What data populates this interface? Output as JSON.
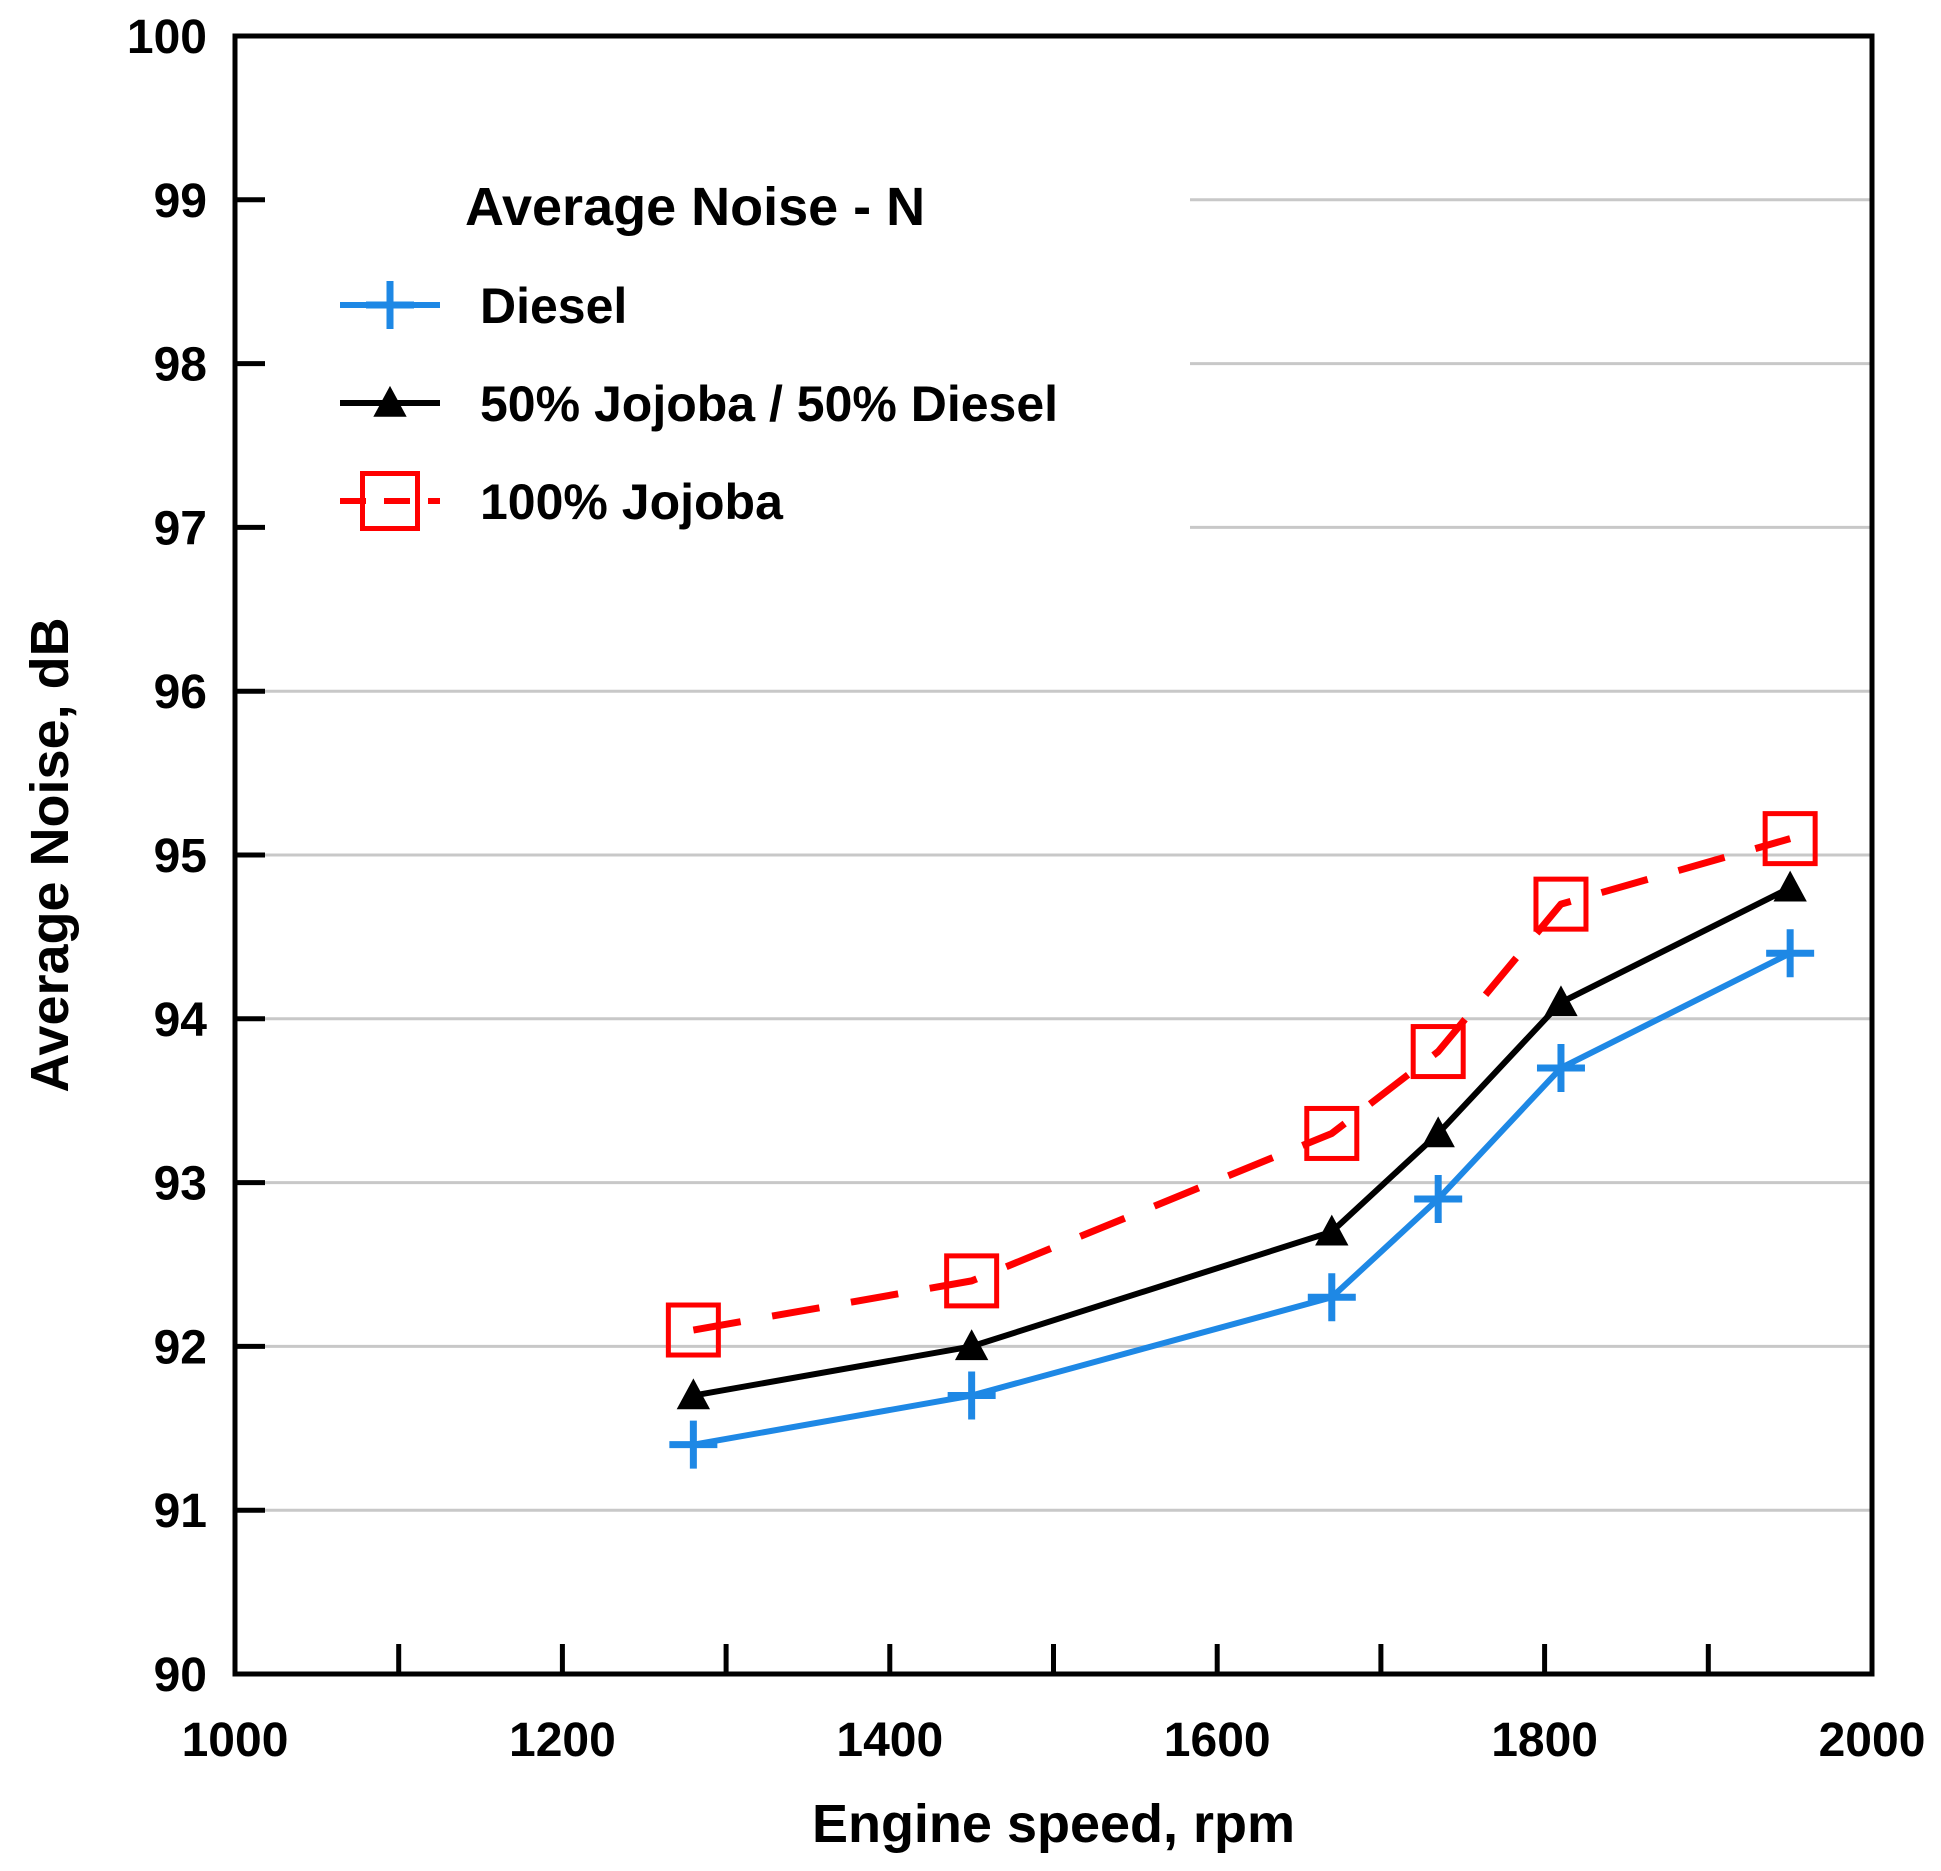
{
  "chart_data": {
    "type": "line",
    "title": "",
    "xlabel": "Engine speed, rpm",
    "ylabel": "Average Noise, dB",
    "xlim": [
      1000,
      2000
    ],
    "ylim": [
      90,
      100
    ],
    "xticks": [
      1000,
      1200,
      1400,
      1600,
      1800,
      2000
    ],
    "xticks_minor": [
      1100,
      1300,
      1500,
      1700,
      1900
    ],
    "yticks": [
      90,
      91,
      92,
      93,
      94,
      95,
      96,
      97,
      98,
      99,
      100
    ],
    "grid": "horizontal",
    "legend": {
      "title": "Average Noise - N",
      "placement": "top-left"
    },
    "series": [
      {
        "name": "Diesel",
        "color": "#1e88e5",
        "marker": "plus",
        "line": "solid",
        "x": [
          1280,
          1450,
          1670,
          1735,
          1810,
          1950
        ],
        "y": [
          91.4,
          91.7,
          92.3,
          92.9,
          93.7,
          94.4
        ]
      },
      {
        "name": "50% Jojoba / 50% Diesel",
        "color": "#000000",
        "marker": "triangle",
        "line": "solid",
        "x": [
          1280,
          1450,
          1670,
          1735,
          1810,
          1950
        ],
        "y": [
          91.7,
          92.0,
          92.7,
          93.3,
          94.1,
          94.8
        ]
      },
      {
        "name": "100% Jojoba",
        "color": "#ff0000",
        "marker": "square",
        "line": "dashed",
        "x": [
          1280,
          1450,
          1670,
          1735,
          1810,
          1950
        ],
        "y": [
          92.1,
          92.4,
          93.3,
          93.8,
          94.7,
          95.1
        ]
      }
    ]
  }
}
